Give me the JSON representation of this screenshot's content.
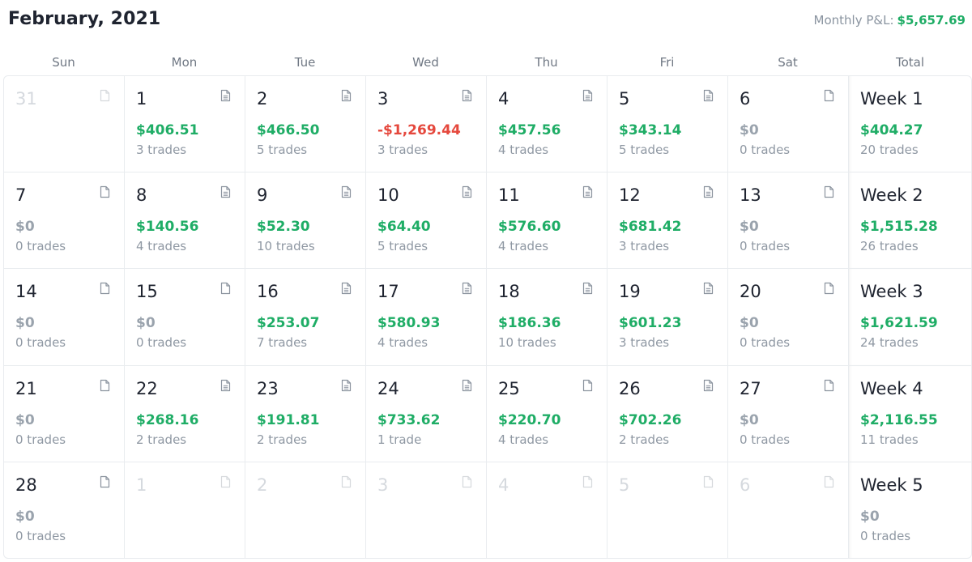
{
  "header": {
    "title": "February, 2021",
    "monthly_pnl_label": "Monthly P&L:",
    "monthly_pnl_value": "$5,657.69"
  },
  "colors": {
    "positive": "#1fad66",
    "negative": "#e5483d",
    "zero": "#9aa3ad"
  },
  "day_headers": [
    "Sun",
    "Mon",
    "Tue",
    "Wed",
    "Thu",
    "Fri",
    "Sat",
    "Total"
  ],
  "weeks": [
    {
      "days": [
        {
          "day": "31",
          "outside": true,
          "icon": "blank-note-icon"
        },
        {
          "day": "1",
          "pnl": "$406.51",
          "sign": "positive",
          "trades": "3 trades",
          "icon": "note-with-lines-icon"
        },
        {
          "day": "2",
          "pnl": "$466.50",
          "sign": "positive",
          "trades": "5 trades",
          "icon": "note-with-lines-icon"
        },
        {
          "day": "3",
          "pnl": "-$1,269.44",
          "sign": "negative",
          "trades": "3 trades",
          "icon": "note-with-lines-icon"
        },
        {
          "day": "4",
          "pnl": "$457.56",
          "sign": "positive",
          "trades": "4 trades",
          "icon": "note-with-lines-icon"
        },
        {
          "day": "5",
          "pnl": "$343.14",
          "sign": "positive",
          "trades": "5 trades",
          "icon": "note-with-lines-icon"
        },
        {
          "day": "6",
          "pnl": "$0",
          "sign": "zero",
          "trades": "0 trades",
          "icon": "blank-note-icon"
        }
      ],
      "total": {
        "label": "Week 1",
        "pnl": "$404.27",
        "sign": "positive",
        "trades": "20 trades"
      }
    },
    {
      "days": [
        {
          "day": "7",
          "pnl": "$0",
          "sign": "zero",
          "trades": "0 trades",
          "icon": "blank-note-icon"
        },
        {
          "day": "8",
          "pnl": "$140.56",
          "sign": "positive",
          "trades": "4 trades",
          "icon": "note-with-lines-icon"
        },
        {
          "day": "9",
          "pnl": "$52.30",
          "sign": "positive",
          "trades": "10 trades",
          "icon": "note-with-lines-icon"
        },
        {
          "day": "10",
          "pnl": "$64.40",
          "sign": "positive",
          "trades": "5 trades",
          "icon": "note-with-lines-icon"
        },
        {
          "day": "11",
          "pnl": "$576.60",
          "sign": "positive",
          "trades": "4 trades",
          "icon": "note-with-lines-icon"
        },
        {
          "day": "12",
          "pnl": "$681.42",
          "sign": "positive",
          "trades": "3 trades",
          "icon": "note-with-lines-icon"
        },
        {
          "day": "13",
          "pnl": "$0",
          "sign": "zero",
          "trades": "0 trades",
          "icon": "blank-note-icon"
        }
      ],
      "total": {
        "label": "Week 2",
        "pnl": "$1,515.28",
        "sign": "positive",
        "trades": "26 trades"
      }
    },
    {
      "days": [
        {
          "day": "14",
          "pnl": "$0",
          "sign": "zero",
          "trades": "0 trades",
          "icon": "blank-note-icon"
        },
        {
          "day": "15",
          "pnl": "$0",
          "sign": "zero",
          "trades": "0 trades",
          "icon": "blank-note-icon"
        },
        {
          "day": "16",
          "pnl": "$253.07",
          "sign": "positive",
          "trades": "7 trades",
          "icon": "note-with-lines-icon"
        },
        {
          "day": "17",
          "pnl": "$580.93",
          "sign": "positive",
          "trades": "4 trades",
          "icon": "note-with-lines-icon"
        },
        {
          "day": "18",
          "pnl": "$186.36",
          "sign": "positive",
          "trades": "10 trades",
          "icon": "note-with-lines-icon"
        },
        {
          "day": "19",
          "pnl": "$601.23",
          "sign": "positive",
          "trades": "3 trades",
          "icon": "note-with-lines-icon"
        },
        {
          "day": "20",
          "pnl": "$0",
          "sign": "zero",
          "trades": "0 trades",
          "icon": "blank-note-icon"
        }
      ],
      "total": {
        "label": "Week 3",
        "pnl": "$1,621.59",
        "sign": "positive",
        "trades": "24 trades"
      }
    },
    {
      "days": [
        {
          "day": "21",
          "pnl": "$0",
          "sign": "zero",
          "trades": "0 trades",
          "icon": "blank-note-icon"
        },
        {
          "day": "22",
          "pnl": "$268.16",
          "sign": "positive",
          "trades": "2 trades",
          "icon": "note-with-lines-icon"
        },
        {
          "day": "23",
          "pnl": "$191.81",
          "sign": "positive",
          "trades": "2 trades",
          "icon": "note-with-lines-icon"
        },
        {
          "day": "24",
          "pnl": "$733.62",
          "sign": "positive",
          "trades": "1 trade",
          "icon": "note-with-lines-icon"
        },
        {
          "day": "25",
          "pnl": "$220.70",
          "sign": "positive",
          "trades": "4 trades",
          "icon": "blank-note-icon"
        },
        {
          "day": "26",
          "pnl": "$702.26",
          "sign": "positive",
          "trades": "2 trades",
          "icon": "note-with-lines-icon"
        },
        {
          "day": "27",
          "pnl": "$0",
          "sign": "zero",
          "trades": "0 trades",
          "icon": "blank-note-icon"
        }
      ],
      "total": {
        "label": "Week 4",
        "pnl": "$2,116.55",
        "sign": "positive",
        "trades": "11 trades"
      }
    },
    {
      "days": [
        {
          "day": "28",
          "pnl": "$0",
          "sign": "zero",
          "trades": "0 trades",
          "icon": "blank-note-icon"
        },
        {
          "day": "1",
          "outside": true,
          "icon": "blank-note-icon"
        },
        {
          "day": "2",
          "outside": true,
          "icon": "blank-note-icon"
        },
        {
          "day": "3",
          "outside": true,
          "icon": "blank-note-icon"
        },
        {
          "day": "4",
          "outside": true,
          "icon": "blank-note-icon"
        },
        {
          "day": "5",
          "outside": true,
          "icon": "blank-note-icon"
        },
        {
          "day": "6",
          "outside": true,
          "icon": "blank-note-icon"
        }
      ],
      "total": {
        "label": "Week 5",
        "pnl": "$0",
        "sign": "zero",
        "trades": "0 trades"
      }
    }
  ]
}
